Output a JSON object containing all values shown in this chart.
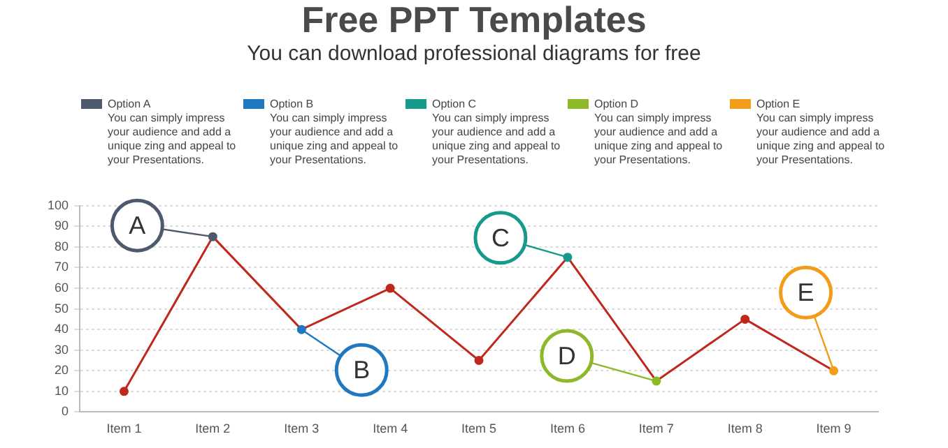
{
  "chart_data": {
    "type": "line",
    "title": "Free PPT Templates",
    "subtitle": "You can download professional diagrams for free",
    "categories": [
      "Item 1",
      "Item 2",
      "Item 3",
      "Item 4",
      "Item 5",
      "Item 6",
      "Item 7",
      "Item 8",
      "Item 9"
    ],
    "series": [
      {
        "color": "#c0281c",
        "colors": [
          "#c0281c",
          "#4d5a6e",
          "#1f78c0",
          "#c0281c",
          "#c0281c",
          "#17998c",
          "#8cb82a",
          "#c0281c",
          "#f29c1a"
        ],
        "values": [
          10,
          85,
          40,
          60,
          25,
          75,
          15,
          45,
          20
        ]
      }
    ],
    "ylim": [
      0,
      100
    ],
    "yticks": [
      0,
      10,
      20,
      30,
      40,
      50,
      60,
      70,
      80,
      90,
      100
    ],
    "grid": "y",
    "legend": false,
    "marker": "circle",
    "line_style": "solid",
    "annotations": [
      {
        "text": "A",
        "x": "Item 2",
        "y": 85
      },
      {
        "text": "B",
        "x": "Item 3",
        "y": 40
      },
      {
        "text": "C",
        "x": "Item 6",
        "y": 75
      },
      {
        "text": "D",
        "x": "Item 7",
        "y": 15
      },
      {
        "text": "E",
        "x": "Item 9",
        "y": 20
      },
      "Option A",
      "You can simply impress your audience and add a unique zing and appeal to your Presentations.",
      "Option B",
      "You can simply impress your audience and add a unique zing and appeal to your Presentations.",
      "Option C",
      "You can simply impress your audience and add a unique zing and appeal to your Presentations.",
      "Option D",
      "You can simply impress your audience and add a unique zing and appeal to your Presentations.",
      "Option E",
      "You can simply impress your audience and add a unique zing and appeal to your Presentations."
    ]
  }
}
